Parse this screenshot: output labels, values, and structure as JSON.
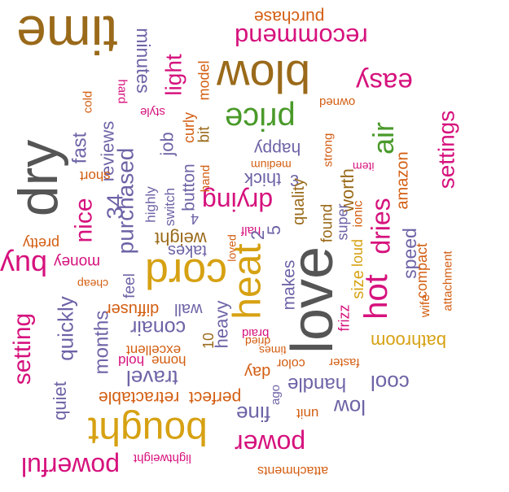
{
  "colors": {
    "brown": "#9a6a1a",
    "gray": "#555555",
    "green": "#4a9a2a",
    "magenta": "#d6127d",
    "purple": "#6c64a6",
    "orange": "#d35e12",
    "gold": "#d6a112"
  },
  "words": [
    {
      "text": "time",
      "color": "brown"
    },
    {
      "text": "purchase",
      "color": "orange"
    },
    {
      "text": "recommend",
      "color": "magenta"
    },
    {
      "text": "blow",
      "color": "brown"
    },
    {
      "text": "easy",
      "color": "magenta"
    },
    {
      "text": "owned",
      "color": "orange"
    },
    {
      "text": "price",
      "color": "green"
    },
    {
      "text": "air",
      "color": "green"
    },
    {
      "text": "settings",
      "color": "magenta"
    },
    {
      "text": "dry",
      "color": "gray"
    },
    {
      "text": "minutes",
      "color": "purple"
    },
    {
      "text": "light",
      "color": "magenta"
    },
    {
      "text": "model",
      "color": "orange"
    },
    {
      "text": "bit",
      "color": "brown"
    },
    {
      "text": "curly",
      "color": "orange"
    },
    {
      "text": "style",
      "color": "magenta"
    },
    {
      "text": "hard",
      "color": "magenta"
    },
    {
      "text": "cold",
      "color": "orange"
    },
    {
      "text": "fast",
      "color": "purple"
    },
    {
      "text": "reviews",
      "color": "purple"
    },
    {
      "text": "job",
      "color": "purple"
    },
    {
      "text": "purchased",
      "color": "purple"
    },
    {
      "text": "short",
      "color": "orange"
    },
    {
      "text": "happy",
      "color": "purple"
    },
    {
      "text": "thick",
      "color": "purple"
    },
    {
      "text": "medium",
      "color": "orange"
    },
    {
      "text": "3",
      "color": "purple"
    },
    {
      "text": "strong",
      "color": "orange"
    },
    {
      "text": "item",
      "color": "magenta"
    },
    {
      "text": "worth",
      "color": "brown"
    },
    {
      "text": "amazon",
      "color": "orange"
    },
    {
      "text": "drying",
      "color": "magenta"
    },
    {
      "text": "quality",
      "color": "brown"
    },
    {
      "text": "dries",
      "color": "magenta"
    },
    {
      "text": "nice",
      "color": "magenta"
    },
    {
      "text": "34",
      "color": "purple"
    },
    {
      "text": "highly",
      "color": "purple"
    },
    {
      "text": "switch",
      "color": "purple"
    },
    {
      "text": "button",
      "color": "purple"
    },
    {
      "text": "hand",
      "color": "orange"
    },
    {
      "text": "4",
      "color": "purple"
    },
    {
      "text": "found",
      "color": "brown"
    },
    {
      "text": "super",
      "color": "purple"
    },
    {
      "text": "ionic",
      "color": "orange"
    },
    {
      "text": "hot",
      "color": "magenta"
    },
    {
      "text": "half",
      "color": "magenta"
    },
    {
      "text": "2",
      "color": "purple"
    },
    {
      "text": "5",
      "color": "purple"
    },
    {
      "text": "pretty",
      "color": "orange"
    },
    {
      "text": "weight",
      "color": "brown"
    },
    {
      "text": "takes",
      "color": "purple"
    },
    {
      "text": "loved",
      "color": "orange"
    },
    {
      "text": "loud",
      "color": "gold"
    },
    {
      "text": "speed",
      "color": "purple"
    },
    {
      "text": "compact",
      "color": "orange"
    },
    {
      "text": "attachment",
      "color": "orange"
    },
    {
      "text": "buy",
      "color": "magenta"
    },
    {
      "text": "money",
      "color": "magenta"
    },
    {
      "text": "cord",
      "color": "gold"
    },
    {
      "text": "heat",
      "color": "gold"
    },
    {
      "text": "love",
      "color": "gray"
    },
    {
      "text": "cheap",
      "color": "orange"
    },
    {
      "text": "feel",
      "color": "purple"
    },
    {
      "text": "makes",
      "color": "purple"
    },
    {
      "text": "size",
      "color": "gold"
    },
    {
      "text": "frizz",
      "color": "magenta"
    },
    {
      "text": "wife",
      "color": "orange"
    },
    {
      "text": "setting",
      "color": "magenta"
    },
    {
      "text": "quickly",
      "color": "purple"
    },
    {
      "text": "months",
      "color": "purple"
    },
    {
      "text": "diffuser",
      "color": "orange"
    },
    {
      "text": "wall",
      "color": "purple"
    },
    {
      "text": "heavy",
      "color": "purple"
    },
    {
      "text": "bathroom",
      "color": "gold"
    },
    {
      "text": "conair",
      "color": "purple"
    },
    {
      "text": "10",
      "color": "brown"
    },
    {
      "text": "braid",
      "color": "magenta"
    },
    {
      "text": "dried",
      "color": "orange"
    },
    {
      "text": "times",
      "color": "orange"
    },
    {
      "text": "excellent",
      "color": "orange"
    },
    {
      "text": "home",
      "color": "orange"
    },
    {
      "text": "hold",
      "color": "magenta"
    },
    {
      "text": "color",
      "color": "orange"
    },
    {
      "text": "day",
      "color": "orange"
    },
    {
      "text": "faster",
      "color": "orange"
    },
    {
      "text": "travel",
      "color": "purple"
    },
    {
      "text": "handle",
      "color": "purple"
    },
    {
      "text": "cool",
      "color": "purple"
    },
    {
      "text": "quiet",
      "color": "purple"
    },
    {
      "text": "retractable",
      "color": "orange"
    },
    {
      "text": "perfect",
      "color": "orange"
    },
    {
      "text": "ago",
      "color": "purple"
    },
    {
      "text": "fine",
      "color": "purple"
    },
    {
      "text": "low",
      "color": "purple"
    },
    {
      "text": "unit",
      "color": "orange"
    },
    {
      "text": "bought",
      "color": "gold"
    },
    {
      "text": "power",
      "color": "magenta"
    },
    {
      "text": "lightweight",
      "color": "magenta"
    },
    {
      "text": "powerful",
      "color": "magenta"
    },
    {
      "text": "attachments",
      "color": "orange"
    }
  ]
}
